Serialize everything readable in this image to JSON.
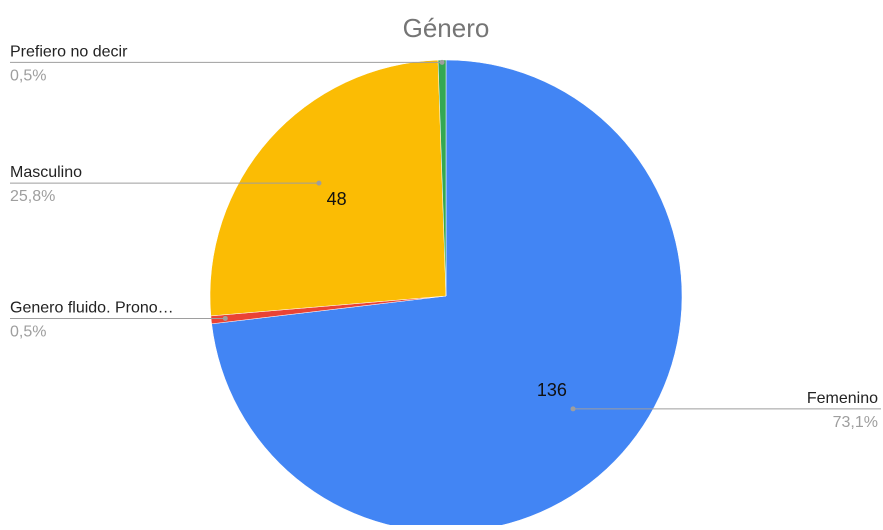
{
  "chart_data": {
    "type": "pie",
    "title": "Género",
    "start_angle_deg": 0,
    "slices": [
      {
        "label": "Femenino",
        "value": 136,
        "percent_label": "73,1%",
        "color": "#4285f4",
        "show_value": true
      },
      {
        "label": "Genero fluido. Prono…",
        "value": 1,
        "percent_label": "0,5%",
        "color": "#ea4335",
        "show_value": false
      },
      {
        "label": "Masculino",
        "value": 48,
        "percent_label": "25,8%",
        "color": "#fbbc04",
        "show_value": true
      },
      {
        "label": "Prefiero no decir",
        "value": 1,
        "percent_label": "0,5%",
        "color": "#34a853",
        "show_value": false
      }
    ]
  }
}
